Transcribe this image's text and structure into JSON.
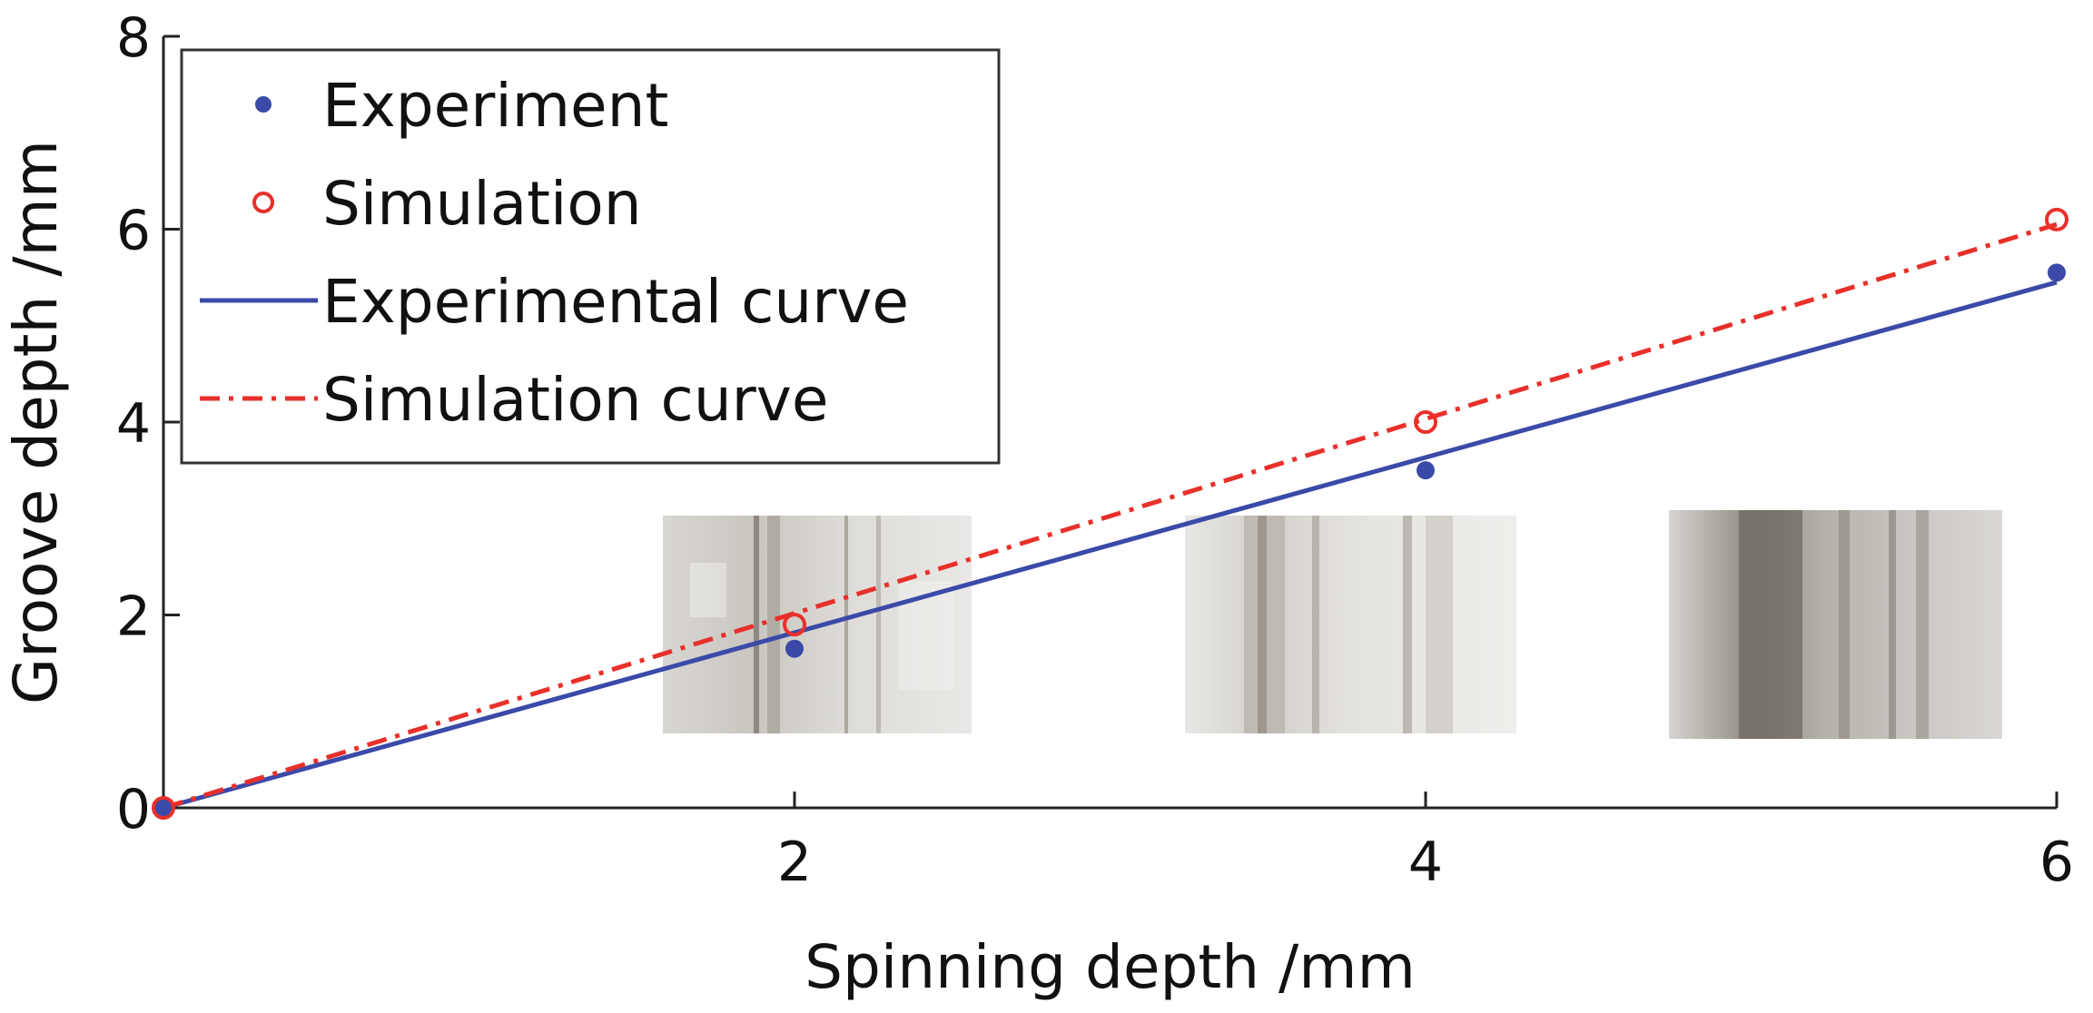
{
  "chart_data": {
    "type": "line",
    "title": "",
    "xlabel": "Spinning depth /mm",
    "ylabel": "Groove depth /mm",
    "xlim": [
      0,
      6
    ],
    "ylim": [
      0,
      8
    ],
    "xticks": [
      2,
      4,
      6
    ],
    "yticks": [
      0,
      2,
      4,
      6,
      8
    ],
    "grid": false,
    "legend": {
      "position": "top-left",
      "boxed": true
    },
    "series": [
      {
        "name": "Experiment",
        "kind": "points",
        "marker": "filled-dot",
        "color": "#3b4aa8",
        "x": [
          0,
          2,
          4,
          6
        ],
        "y": [
          0.0,
          1.65,
          3.5,
          5.55
        ]
      },
      {
        "name": "Simulation",
        "kind": "points",
        "marker": "open-circle",
        "color": "#e8302a",
        "x": [
          0,
          2,
          4,
          6
        ],
        "y": [
          0.0,
          1.9,
          4.0,
          6.1
        ]
      },
      {
        "name": "Experimental curve",
        "kind": "line",
        "style": "solid",
        "color": "#3b4aa8",
        "x": [
          0,
          6
        ],
        "y": [
          0.0,
          5.45
        ]
      },
      {
        "name": "Simulation curve",
        "kind": "line",
        "style": "dashdot",
        "color": "#e8302a",
        "x": [
          0,
          6
        ],
        "y": [
          0.0,
          6.05
        ]
      }
    ],
    "inset_photos": [
      {
        "description": "groove photo at spinning depth 2 mm",
        "x_center": 2.1,
        "y_center": 1.9
      },
      {
        "description": "groove photo at spinning depth 4 mm",
        "x_center": 4.35,
        "y_center": 1.9
      },
      {
        "description": "groove photo at spinning depth 6 mm",
        "x_center": 5.85,
        "y_center": 1.9
      }
    ]
  }
}
